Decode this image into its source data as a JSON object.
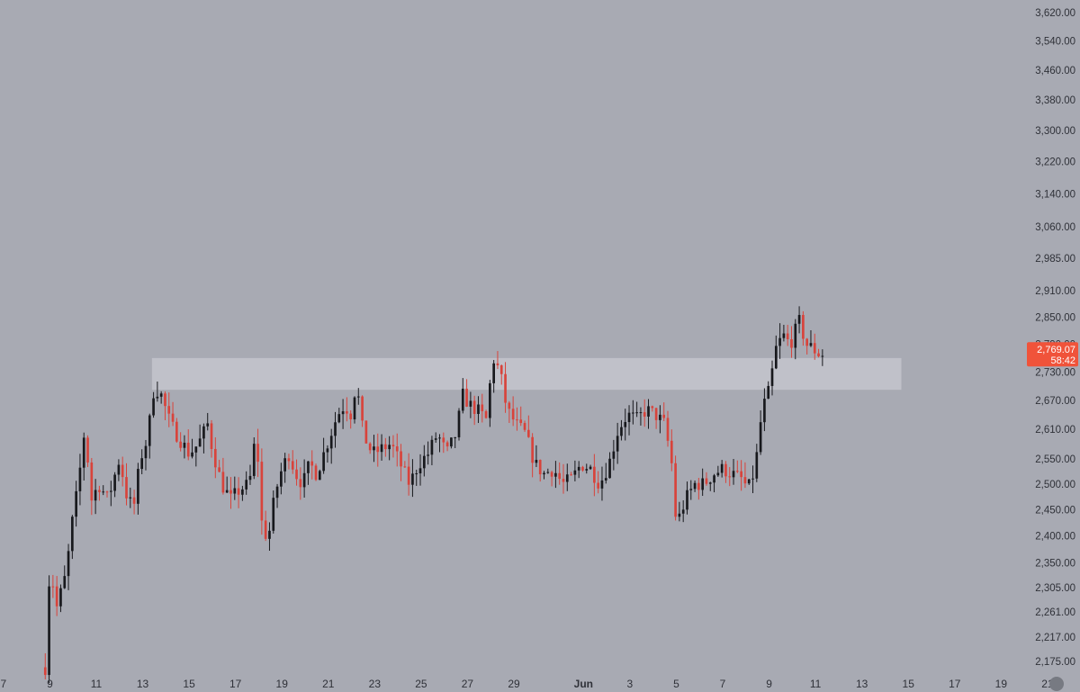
{
  "chart_data": {
    "type": "candlestick",
    "colors": {
      "background": "#a8aab3",
      "up": "#17181c",
      "down": "#d8433b",
      "zone": "#c4c6cd",
      "axis_text": "#2f3138",
      "badge": "#f0533a"
    },
    "y_axis": {
      "scale": "log",
      "ticks": [
        "3,620.00",
        "3,540.00",
        "3,460.00",
        "3,380.00",
        "3,300.00",
        "3,220.00",
        "3,140.00",
        "3,060.00",
        "2,985.00",
        "2,910.00",
        "2,850.00",
        "2,790.00",
        "2,730.00",
        "2,670.00",
        "2,610.00",
        "2,550.00",
        "2,500.00",
        "2,450.00",
        "2,400.00",
        "2,350.00",
        "2,305.00",
        "2,261.00",
        "2,217.00",
        "2,175.00"
      ],
      "range": [
        2150,
        3640
      ]
    },
    "x_axis": {
      "ticks": [
        {
          "label": "7",
          "day": 7
        },
        {
          "label": "9",
          "day": 9
        },
        {
          "label": "11",
          "day": 11
        },
        {
          "label": "13",
          "day": 13
        },
        {
          "label": "15",
          "day": 15
        },
        {
          "label": "17",
          "day": 17
        },
        {
          "label": "19",
          "day": 19
        },
        {
          "label": "21",
          "day": 21
        },
        {
          "label": "23",
          "day": 23
        },
        {
          "label": "25",
          "day": 25
        },
        {
          "label": "27",
          "day": 27
        },
        {
          "label": "29",
          "day": 29
        },
        {
          "label": "Jun",
          "day": 32,
          "bold": true
        },
        {
          "label": "3",
          "day": 34
        },
        {
          "label": "5",
          "day": 36
        },
        {
          "label": "7",
          "day": 38
        },
        {
          "label": "9",
          "day": 40
        },
        {
          "label": "11",
          "day": 42
        },
        {
          "label": "13",
          "day": 44
        },
        {
          "label": "15",
          "day": 46
        },
        {
          "label": "17",
          "day": 48
        },
        {
          "label": "19",
          "day": 50
        },
        {
          "label": "21",
          "day": 52
        }
      ],
      "day_range": [
        6.85,
        53.4
      ]
    },
    "candles_per_day": 6,
    "first_candle_day": 8.8,
    "anchors": [
      [
        8.8,
        2165
      ],
      [
        9.0,
        2345
      ],
      [
        9.3,
        2270
      ],
      [
        9.7,
        2330
      ],
      [
        10.0,
        2440
      ],
      [
        10.2,
        2490
      ],
      [
        10.5,
        2610
      ],
      [
        10.8,
        2470
      ],
      [
        11.1,
        2500
      ],
      [
        11.5,
        2470
      ],
      [
        12.0,
        2550
      ],
      [
        12.3,
        2480
      ],
      [
        12.6,
        2450
      ],
      [
        12.9,
        2550
      ],
      [
        13.2,
        2590
      ],
      [
        13.5,
        2700
      ],
      [
        13.8,
        2680
      ],
      [
        14.2,
        2620
      ],
      [
        14.6,
        2590
      ],
      [
        15.0,
        2560
      ],
      [
        15.4,
        2580
      ],
      [
        15.8,
        2620
      ],
      [
        16.0,
        2570
      ],
      [
        16.4,
        2500
      ],
      [
        16.8,
        2470
      ],
      [
        17.2,
        2490
      ],
      [
        17.6,
        2500
      ],
      [
        17.9,
        2610
      ],
      [
        18.1,
        2430
      ],
      [
        18.4,
        2390
      ],
      [
        18.7,
        2480
      ],
      [
        19.0,
        2530
      ],
      [
        19.3,
        2560
      ],
      [
        19.6,
        2520
      ],
      [
        19.9,
        2500
      ],
      [
        20.2,
        2540
      ],
      [
        20.5,
        2520
      ],
      [
        20.8,
        2560
      ],
      [
        21.1,
        2600
      ],
      [
        21.4,
        2640
      ],
      [
        21.7,
        2660
      ],
      [
        22.0,
        2640
      ],
      [
        22.2,
        2710
      ],
      [
        22.5,
        2600
      ],
      [
        22.9,
        2560
      ],
      [
        23.3,
        2570
      ],
      [
        23.7,
        2580
      ],
      [
        24.1,
        2540
      ],
      [
        24.5,
        2500
      ],
      [
        24.9,
        2540
      ],
      [
        25.3,
        2560
      ],
      [
        25.7,
        2600
      ],
      [
        26.1,
        2560
      ],
      [
        26.5,
        2600
      ],
      [
        26.8,
        2680
      ],
      [
        27.1,
        2660
      ],
      [
        27.4,
        2650
      ],
      [
        27.8,
        2630
      ],
      [
        28.1,
        2760
      ],
      [
        28.4,
        2730
      ],
      [
        28.7,
        2650
      ],
      [
        29.1,
        2620
      ],
      [
        29.5,
        2600
      ],
      [
        29.9,
        2540
      ],
      [
        30.3,
        2520
      ],
      [
        30.7,
        2530
      ],
      [
        31.1,
        2500
      ],
      [
        31.5,
        2510
      ],
      [
        31.9,
        2540
      ],
      [
        32.3,
        2530
      ],
      [
        32.7,
        2500
      ],
      [
        33.1,
        2540
      ],
      [
        33.5,
        2610
      ],
      [
        33.9,
        2640
      ],
      [
        34.3,
        2630
      ],
      [
        34.7,
        2650
      ],
      [
        35.1,
        2640
      ],
      [
        35.5,
        2620
      ],
      [
        35.8,
        2540
      ],
      [
        36.0,
        2420
      ],
      [
        36.4,
        2470
      ],
      [
        36.8,
        2500
      ],
      [
        37.2,
        2500
      ],
      [
        37.6,
        2520
      ],
      [
        38.0,
        2530
      ],
      [
        38.4,
        2520
      ],
      [
        38.8,
        2510
      ],
      [
        39.1,
        2490
      ],
      [
        39.4,
        2530
      ],
      [
        39.7,
        2650
      ],
      [
        40.0,
        2690
      ],
      [
        40.3,
        2780
      ],
      [
        40.6,
        2810
      ],
      [
        40.9,
        2790
      ],
      [
        41.3,
        2840
      ],
      [
        41.6,
        2790
      ],
      [
        41.9,
        2780
      ],
      [
        42.1,
        2770
      ],
      [
        42.3,
        2769
      ]
    ],
    "resistance_zone": {
      "from_day": 13.4,
      "to_day": 45.7,
      "low": 2692,
      "high": 2760
    },
    "last_price": {
      "value": "2,769.07",
      "level": 2769.07,
      "countdown": "58:42"
    }
  }
}
